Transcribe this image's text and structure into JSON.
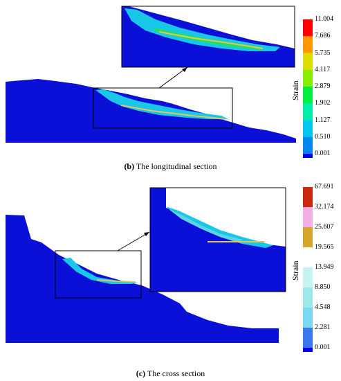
{
  "panel_b": {
    "caption_letter": "(b)",
    "caption_text": " The longitudinal section",
    "legend_title": "Strain",
    "legend_values": [
      "11.004",
      "7.686",
      "5.735",
      "4.117",
      "2.879",
      "1.902",
      "1.127",
      "0.510",
      "0.001"
    ],
    "legend_colors": [
      "#ff0000",
      "#ff9900",
      "#dddd00",
      "#88ee00",
      "#00ee44",
      "#00eeaa",
      "#00c8ee",
      "#0088ee",
      "#0000ee"
    ]
  },
  "panel_c": {
    "caption_letter": "(c)",
    "caption_text": " The cross section",
    "legend_title": "Strain",
    "legend_values": [
      "67.691",
      "32.174",
      "25.607",
      "19.565",
      "13.949",
      "8.850",
      "4.548",
      "2.281",
      "0.001"
    ],
    "legend_colors": [
      "#cc2a10",
      "#f2b0e6",
      "#d4a72c",
      "#ffffff",
      "#c6f4f0",
      "#9ee8ea",
      "#7cd7f0",
      "#3a78f0",
      "#0000ee"
    ]
  },
  "colors": {
    "body": "#0a10d8",
    "deep": "#0000ee",
    "cyan": "#19c8e8",
    "cyan_light": "#5fd3e8",
    "slip": "#e6c45c",
    "green": "#22e060"
  }
}
